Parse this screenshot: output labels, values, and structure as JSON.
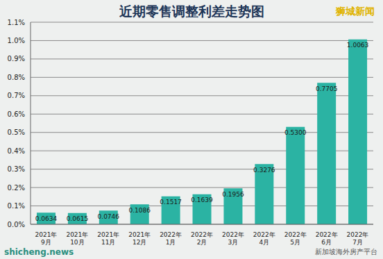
{
  "chart_data": {
    "type": "bar",
    "title": "近期零售调整利差走势图",
    "categories": [
      "2021年9月",
      "2021年10月",
      "2021年11月",
      "2021年12月",
      "2022年1月",
      "2022年2月",
      "2022年3月",
      "2022年4月",
      "2022年5月",
      "2022年6月",
      "2022年7月"
    ],
    "values": [
      0.0634,
      0.0615,
      0.0746,
      0.1086,
      0.1517,
      0.1639,
      0.1956,
      0.3276,
      0.53,
      0.7705,
      1.0063
    ],
    "value_labels": [
      "0.0634",
      "0.0615",
      "0.0746",
      "0.1086",
      "0.1517",
      "0.1639",
      "0.1956",
      "0.3276",
      "0.5300",
      "0.7705",
      "1.0063"
    ],
    "color": "#2bb3a3",
    "ylim": [
      0,
      1.1
    ],
    "yticks": [
      {
        "value": 0,
        "label": "0.0%"
      },
      {
        "value": 0.1,
        "label": "0.1%"
      },
      {
        "value": 0.2,
        "label": "0.2%"
      },
      {
        "value": 0.3,
        "label": "0.3%"
      },
      {
        "value": 0.4,
        "label": "0.4%"
      },
      {
        "value": 0.5,
        "label": "0.5%"
      },
      {
        "value": 0.6,
        "label": "0.6%"
      },
      {
        "value": 0.7,
        "label": "0.7%"
      },
      {
        "value": 0.8,
        "label": "0.8%"
      },
      {
        "value": 0.9,
        "label": "0.9%"
      },
      {
        "value": 1.0,
        "label": "1.0%"
      },
      {
        "value": 1.1,
        "label": "1.1%"
      }
    ],
    "grid": true,
    "data_labels": true,
    "annotations": [
      "狮城新闻",
      "shicheng.news",
      "新加坡海外房产平台"
    ]
  }
}
